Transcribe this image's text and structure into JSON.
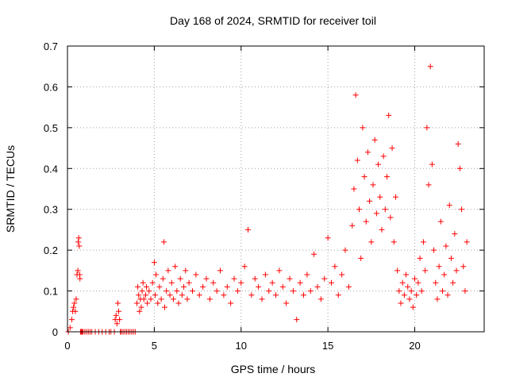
{
  "chart_data": {
    "type": "scatter",
    "title": "Day 168 of 2024, SRMTID for receiver toil",
    "xlabel": "GPS time / hours",
    "ylabel": "SRMTID / TECUs",
    "xlim": [
      0,
      24
    ],
    "ylim": [
      0,
      0.7
    ],
    "xticks": [
      0,
      5,
      10,
      15,
      20
    ],
    "xtick_labels": [
      "0",
      "5",
      "10",
      "15",
      "20"
    ],
    "yticks": [
      0,
      0.1,
      0.2,
      0.3,
      0.4,
      0.5,
      0.6,
      0.7
    ],
    "ytick_labels": [
      "0",
      "0.1",
      "0.2",
      "0.3",
      "0.4",
      "0.5",
      "0.6",
      "0.7"
    ],
    "grid": true,
    "marker": "+",
    "series": [
      {
        "name": "SRMTID",
        "color": "#ff0000",
        "x": [
          0.05,
          0.15,
          0.25,
          0.3,
          0.35,
          0.4,
          0.45,
          0.5,
          0.55,
          0.6,
          0.62,
          0.65,
          0.68,
          0.7,
          0.72,
          0.75,
          0.78,
          0.8,
          0.82,
          0.85,
          0.9,
          1.0,
          1.1,
          1.2,
          1.3,
          1.4,
          1.6,
          1.8,
          2.0,
          2.2,
          2.4,
          2.5,
          2.7,
          2.75,
          2.8,
          2.85,
          2.9,
          2.95,
          3.0,
          3.05,
          3.1,
          3.2,
          3.3,
          3.4,
          3.5,
          3.6,
          3.7,
          3.8,
          3.9,
          4.0,
          4.05,
          4.1,
          4.15,
          4.2,
          4.25,
          4.3,
          4.35,
          4.4,
          4.5,
          4.55,
          4.6,
          4.7,
          4.8,
          4.9,
          5.0,
          5.05,
          5.1,
          5.2,
          5.3,
          5.4,
          5.5,
          5.55,
          5.6,
          5.7,
          5.8,
          5.9,
          6.0,
          6.1,
          6.2,
          6.3,
          6.4,
          6.5,
          6.6,
          6.7,
          6.8,
          6.9,
          7.0,
          7.2,
          7.4,
          7.6,
          7.8,
          8.0,
          8.2,
          8.4,
          8.6,
          8.8,
          9.0,
          9.2,
          9.4,
          9.6,
          9.8,
          10.0,
          10.2,
          10.4,
          10.6,
          10.8,
          11.0,
          11.2,
          11.4,
          11.6,
          11.8,
          12.0,
          12.2,
          12.4,
          12.6,
          12.8,
          13.0,
          13.2,
          13.4,
          13.6,
          13.8,
          14.0,
          14.2,
          14.4,
          14.6,
          14.8,
          15.0,
          15.2,
          15.4,
          15.6,
          15.8,
          16.0,
          16.2,
          16.4,
          16.5,
          16.6,
          16.7,
          16.8,
          16.9,
          17.0,
          17.1,
          17.2,
          17.3,
          17.4,
          17.5,
          17.6,
          17.7,
          17.8,
          17.9,
          18.0,
          18.1,
          18.2,
          18.3,
          18.4,
          18.5,
          18.6,
          18.7,
          18.8,
          18.9,
          19.0,
          19.1,
          19.2,
          19.3,
          19.4,
          19.5,
          19.6,
          19.7,
          19.8,
          19.9,
          20.0,
          20.1,
          20.2,
          20.3,
          20.4,
          20.5,
          20.6,
          20.7,
          20.8,
          20.9,
          21.0,
          21.1,
          21.2,
          21.3,
          21.4,
          21.5,
          21.6,
          21.7,
          21.8,
          21.9,
          22.0,
          22.1,
          22.2,
          22.3,
          22.4,
          22.5,
          22.6,
          22.7,
          22.8,
          22.9,
          23.0
        ],
        "y": [
          0.0,
          0.01,
          0.03,
          0.05,
          0.06,
          0.07,
          0.05,
          0.08,
          0.14,
          0.15,
          0.22,
          0.23,
          0.21,
          0.14,
          0.13,
          0.0,
          0.0,
          0.0,
          0.0,
          0.0,
          0.0,
          0.0,
          0.0,
          0.0,
          0.0,
          0.0,
          0.0,
          0.0,
          0.0,
          0.0,
          0.0,
          0.0,
          0.0,
          0.03,
          0.04,
          0.02,
          0.07,
          0.05,
          0.03,
          0.0,
          0.0,
          0.0,
          0.0,
          0.0,
          0.0,
          0.0,
          0.0,
          0.0,
          0.0,
          0.07,
          0.11,
          0.09,
          0.05,
          0.08,
          0.06,
          0.1,
          0.12,
          0.08,
          0.09,
          0.11,
          0.07,
          0.1,
          0.08,
          0.12,
          0.17,
          0.09,
          0.14,
          0.07,
          0.11,
          0.08,
          0.13,
          0.22,
          0.06,
          0.1,
          0.15,
          0.09,
          0.12,
          0.08,
          0.16,
          0.1,
          0.07,
          0.13,
          0.09,
          0.11,
          0.15,
          0.08,
          0.12,
          0.1,
          0.14,
          0.09,
          0.11,
          0.13,
          0.08,
          0.12,
          0.1,
          0.15,
          0.09,
          0.11,
          0.07,
          0.13,
          0.1,
          0.12,
          0.16,
          0.25,
          0.09,
          0.13,
          0.11,
          0.08,
          0.14,
          0.1,
          0.12,
          0.09,
          0.15,
          0.11,
          0.07,
          0.13,
          0.1,
          0.03,
          0.12,
          0.09,
          0.14,
          0.1,
          0.19,
          0.11,
          0.08,
          0.13,
          0.23,
          0.12,
          0.16,
          0.09,
          0.14,
          0.2,
          0.11,
          0.26,
          0.35,
          0.58,
          0.42,
          0.3,
          0.18,
          0.5,
          0.38,
          0.27,
          0.44,
          0.32,
          0.22,
          0.36,
          0.47,
          0.29,
          0.41,
          0.33,
          0.25,
          0.43,
          0.3,
          0.38,
          0.53,
          0.28,
          0.45,
          0.22,
          0.33,
          0.15,
          0.1,
          0.07,
          0.12,
          0.09,
          0.14,
          0.11,
          0.08,
          0.1,
          0.06,
          0.13,
          0.09,
          0.12,
          0.18,
          0.1,
          0.22,
          0.15,
          0.5,
          0.36,
          0.65,
          0.41,
          0.2,
          0.12,
          0.08,
          0.16,
          0.27,
          0.1,
          0.14,
          0.21,
          0.09,
          0.31,
          0.18,
          0.12,
          0.24,
          0.15,
          0.46,
          0.4,
          0.3,
          0.16,
          0.1,
          0.22
        ]
      }
    ]
  }
}
